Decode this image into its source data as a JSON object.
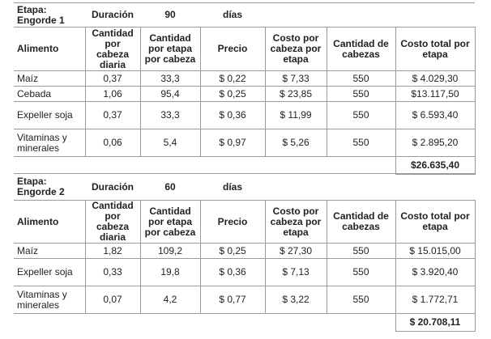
{
  "columns": {
    "alimento": "Alimento",
    "cant_diaria": "Cantidad por cabeza diaria",
    "cant_etapa": "Cantidad por etapa por cabeza",
    "precio": "Precio",
    "costo_cabeza": "Costo por cabeza por etapa",
    "cabezas": "Cantidad de cabezas",
    "costo_total": "Costo total por etapa"
  },
  "stages": [
    {
      "etapa_label": "Etapa: Engorde 1",
      "duracion_label": "Duración",
      "duracion_value": "90",
      "dias_label": "días",
      "rows": [
        {
          "alimento": "Maíz",
          "cant_diaria": "0,37",
          "cant_etapa": "33,3",
          "precio": "$ 0,22",
          "costo_cabeza": "$ 7,33",
          "cabezas": "550",
          "costo_total": "$ 4.029,30"
        },
        {
          "alimento": "Cebada",
          "cant_diaria": "1,06",
          "cant_etapa": "95,4",
          "precio": "$ 0,25",
          "costo_cabeza": "$ 23,85",
          "cabezas": "550",
          "costo_total": "$13.117,50"
        },
        {
          "alimento": "Expeller soja",
          "cant_diaria": "0,37",
          "cant_etapa": "33,3",
          "precio": "$ 0,36",
          "costo_cabeza": "$ 11,99",
          "cabezas": "550",
          "costo_total": "$ 6.593,40"
        },
        {
          "alimento": "Vitaminas y minerales",
          "cant_diaria": "0,06",
          "cant_etapa": "5,4",
          "precio": "$ 0,97",
          "costo_cabeza": "$ 5,26",
          "cabezas": "550",
          "costo_total": "$ 2.895,20"
        }
      ],
      "total": "$26.635,40"
    },
    {
      "etapa_label": "Etapa: Engorde 2",
      "duracion_label": "Duración",
      "duracion_value": "60",
      "dias_label": "días",
      "rows": [
        {
          "alimento": "Maíz",
          "cant_diaria": "1,82",
          "cant_etapa": "109,2",
          "precio": "$ 0,25",
          "costo_cabeza": "$ 27,30",
          "cabezas": "550",
          "costo_total": "$ 15.015,00"
        },
        {
          "alimento": "Expeller soja",
          "cant_diaria": "0,33",
          "cant_etapa": "19,8",
          "precio": "$ 0,36",
          "costo_cabeza": "$ 7,13",
          "cabezas": "550",
          "costo_total": "$ 3.920,40"
        },
        {
          "alimento": "Vitaminas y minerales",
          "cant_diaria": "0,07",
          "cant_etapa": "4,2",
          "precio": "$ 0,77",
          "costo_cabeza": "$ 3,22",
          "cabezas": "550",
          "costo_total": "$ 1.772,71"
        }
      ],
      "total": "$ 20.708,11"
    }
  ]
}
